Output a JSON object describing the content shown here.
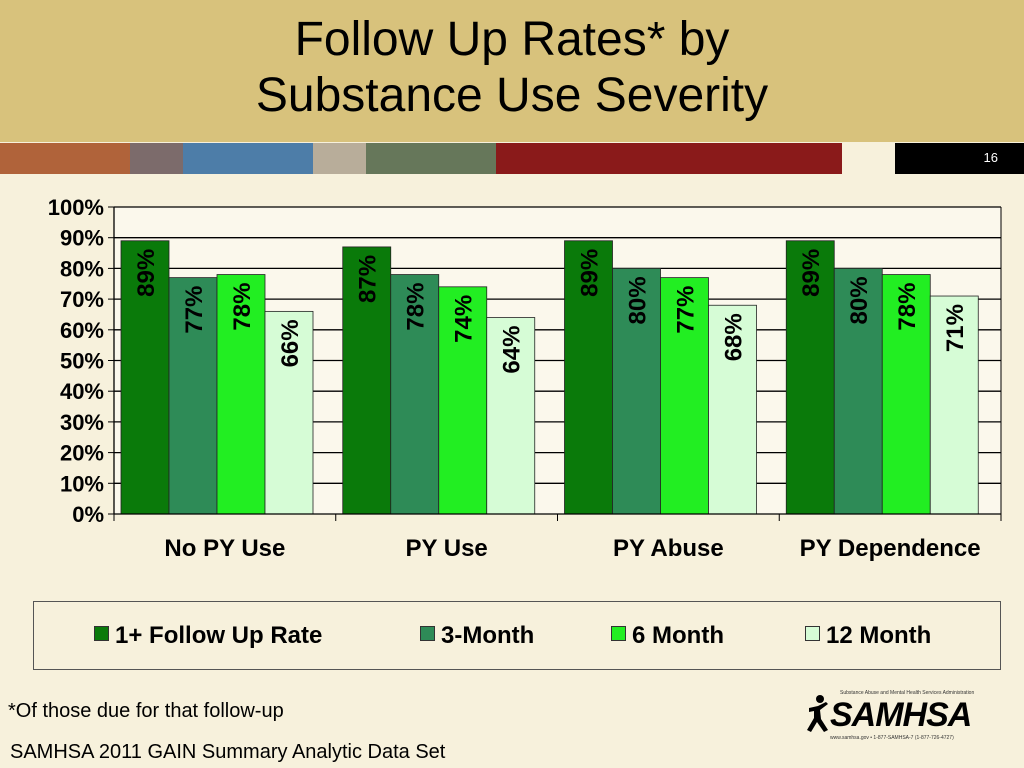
{
  "slide": {
    "title_line1": "Follow Up Rates* by",
    "title_line2": "Substance Use Severity",
    "slide_number": "16",
    "footnote": "*Of those due for that follow-up",
    "source": "SAMHSA 2011 GAIN Summary Analytic Data Set",
    "stripe_colors": [
      "#b0633a",
      "#7c6b6b",
      "#4d7da8",
      "#b8ad9a",
      "#66775a",
      "#8a1a1a",
      "#f7f1dc"
    ]
  },
  "logo": {
    "name": "SAMHSA",
    "tagline": "Substance Abuse and Mental Health Services Administration",
    "contact": "www.samhsa.gov • 1-877-SAMHSA-7 (1-877-726-4727)",
    "icon": "samhsa-figure-icon"
  },
  "chart_data": {
    "type": "bar",
    "title": "Follow Up Rates* by Substance Use Severity",
    "categories": [
      "No PY Use",
      "PY Use",
      "PY Abuse",
      "PY Dependence"
    ],
    "series": [
      {
        "name": "1+ Follow Up Rate",
        "values": [
          89,
          87,
          89,
          89
        ],
        "labels": [
          "89%",
          "87%",
          "89%",
          "89%"
        ],
        "color": "#0a7a0a"
      },
      {
        "name": "3-Month",
        "values": [
          77,
          78,
          80,
          80
        ],
        "labels": [
          "77%",
          "78%",
          "80%",
          "80%"
        ],
        "color": "#2e8b57"
      },
      {
        "name": "6 Month",
        "values": [
          78,
          74,
          77,
          78
        ],
        "labels": [
          "78%",
          "74%",
          "77%",
          "78%"
        ],
        "color": "#22ee22"
      },
      {
        "name": "12 Month",
        "values": [
          66,
          64,
          68,
          71
        ],
        "labels": [
          "66%",
          "64%",
          "68%",
          "71%"
        ],
        "color": "#d6fcd6"
      }
    ],
    "ylim": [
      0,
      100
    ],
    "yticks": [
      "0%",
      "10%",
      "20%",
      "30%",
      "40%",
      "50%",
      "60%",
      "70%",
      "80%",
      "90%",
      "100%"
    ],
    "ytick_values": [
      0,
      10,
      20,
      30,
      40,
      50,
      60,
      70,
      80,
      90,
      100
    ],
    "grid": true,
    "legend_position": "bottom"
  }
}
